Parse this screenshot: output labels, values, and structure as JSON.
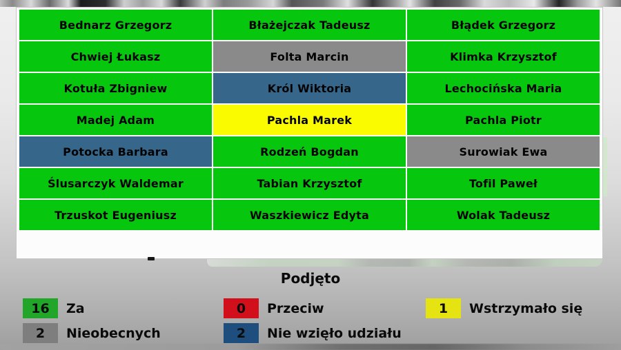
{
  "voting_board": {
    "status_title": "Podjęto",
    "cell_colors": {
      "za": "#06C60D",
      "przeciw": "#D2101B",
      "wstrzymal_sie": "#FBFB00",
      "nieobecny": "#8A8A8A",
      "nie_wzielo_udzialu": "#36678B"
    },
    "grid": {
      "columns": 3,
      "cells": [
        {
          "name": "Bednarz Grzegorz",
          "vote": "za"
        },
        {
          "name": "Błażejczak Tadeusz",
          "vote": "za"
        },
        {
          "name": "Błądek Grzegorz",
          "vote": "za"
        },
        {
          "name": "Chwiej Łukasz",
          "vote": "za"
        },
        {
          "name": "Folta Marcin",
          "vote": "nieobecny"
        },
        {
          "name": "Klimka Krzysztof",
          "vote": "za"
        },
        {
          "name": "Kotuła Zbigniew",
          "vote": "za"
        },
        {
          "name": "Król Wiktoria",
          "vote": "nie_wzielo_udzialu"
        },
        {
          "name": "Lechocińska Maria",
          "vote": "za"
        },
        {
          "name": "Madej Adam",
          "vote": "za"
        },
        {
          "name": "Pachla Marek",
          "vote": "wstrzymal_sie"
        },
        {
          "name": "Pachla Piotr",
          "vote": "za"
        },
        {
          "name": "Potocka Barbara",
          "vote": "nie_wzielo_udzialu"
        },
        {
          "name": "Rodzeń Bogdan",
          "vote": "za"
        },
        {
          "name": "Surowiak Ewa",
          "vote": "nieobecny"
        },
        {
          "name": "Ślusarczyk Waldemar",
          "vote": "za"
        },
        {
          "name": "Tabian Krzysztof",
          "vote": "za"
        },
        {
          "name": "Tofil Paweł",
          "vote": "za"
        },
        {
          "name": "Trzuskot Eugeniusz",
          "vote": "za"
        },
        {
          "name": "Waszkiewicz Edyta",
          "vote": "za"
        },
        {
          "name": "Wolak Tadeusz",
          "vote": "za"
        }
      ]
    },
    "legend": [
      {
        "count": "16",
        "label": "Za",
        "color": "#21A629",
        "column": 1,
        "row": 1
      },
      {
        "count": "0",
        "label": "Przeciw",
        "color": "#D2101B",
        "column": 2,
        "row": 1
      },
      {
        "count": "1",
        "label": "Wstrzymało się",
        "color": "#E6E312",
        "column": 3,
        "row": 1
      },
      {
        "count": "2",
        "label": "Nieobecnych",
        "color": "#7E7E7E",
        "column": 1,
        "row": 2
      },
      {
        "count": "2",
        "label": "Nie wzięło udziału",
        "color": "#1D4E7E",
        "column": 2,
        "row": 2
      }
    ]
  }
}
